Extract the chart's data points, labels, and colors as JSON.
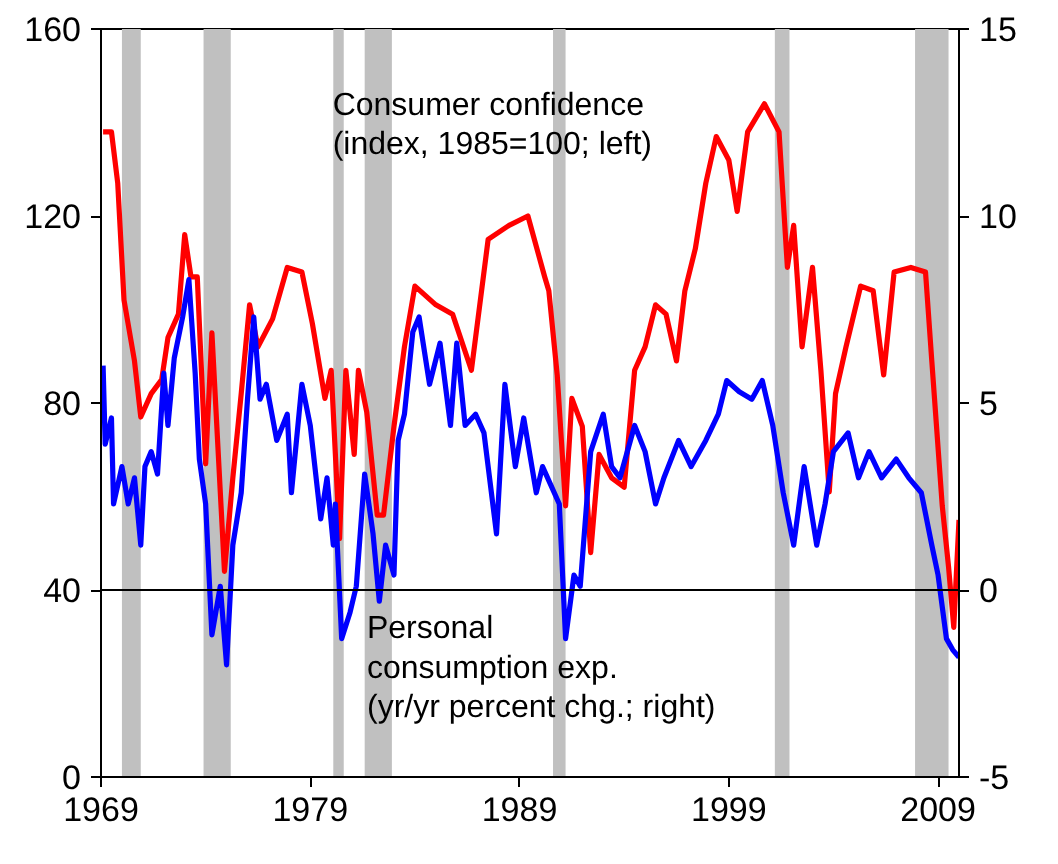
{
  "chart_data": {
    "type": "line",
    "xlim": [
      1969,
      2010
    ],
    "xticks": [
      1969,
      1979,
      1989,
      1999,
      2009
    ],
    "ylim": [
      0,
      160
    ],
    "yticks": [
      0,
      40,
      80,
      120,
      160
    ],
    "y2lim": [
      -5,
      15
    ],
    "y2ticks": [
      -5,
      0,
      5,
      10,
      15
    ],
    "grid": false,
    "legend": false,
    "marker": "none",
    "line_style": "solid",
    "series": [
      {
        "name": "Consumer confidence\n(index, 1985=100; left)",
        "color": "#ff0000",
        "x": [
          1969.1,
          1969.5,
          1969.8,
          1970.1,
          1970.6,
          1970.9,
          1971.4,
          1971.9,
          1972.2,
          1972.7,
          1973.0,
          1973.3,
          1973.6,
          1974.0,
          1974.3,
          1974.9,
          1975.3,
          1975.7,
          1976.1,
          1976.5,
          1977.2,
          1977.9,
          1978.6,
          1979.1,
          1979.7,
          1980.0,
          1980.4,
          1980.7,
          1981.1,
          1981.3,
          1981.7,
          1982.2,
          1982.5,
          1983.0,
          1983.5,
          1984.0,
          1985.0,
          1985.8,
          1986.7,
          1987.5,
          1988.5,
          1989.4,
          1990.2,
          1990.4,
          1990.8,
          1991.2,
          1991.5,
          1992.0,
          1992.4,
          1992.8,
          1993.4,
          1994.0,
          1994.5,
          1995.0,
          1995.5,
          1996.0,
          1996.5,
          1996.9,
          1997.4,
          1997.9,
          1998.4,
          1999.0,
          1999.4,
          1999.9,
          2000.7,
          2001.4,
          2001.8,
          2002.1,
          2002.5,
          2003.0,
          2003.4,
          2003.8,
          2004.1,
          2004.6,
          2005.3,
          2005.9,
          2006.4,
          2006.9,
          2007.7,
          2008.4,
          2008.7,
          2009.2,
          2009.5,
          2009.75,
          2010.0
        ],
        "values": [
          138,
          138,
          127,
          102,
          89,
          77,
          82,
          85,
          94,
          99,
          116,
          107,
          107,
          67,
          95,
          44,
          64,
          82,
          101,
          92,
          98,
          109,
          108,
          97,
          81,
          87,
          51,
          87,
          69,
          87,
          78,
          56,
          56,
          75,
          92,
          105,
          101,
          99,
          87,
          115,
          118,
          120,
          107,
          104,
          86,
          58,
          81,
          75,
          48,
          69,
          64,
          62,
          87,
          92,
          101,
          99,
          89,
          104,
          113,
          127,
          137,
          132,
          121,
          138,
          144,
          138,
          109,
          118,
          92,
          109,
          87,
          61,
          82,
          92,
          105,
          104,
          86,
          108,
          109,
          108,
          89,
          58,
          45,
          32,
          55
        ]
      },
      {
        "name": "Personal\nconsumption exp.\n(yr/yr percent chg.; right)",
        "color": "#0000ff",
        "axis": "y2",
        "x": [
          1969.1,
          1969.2,
          1969.5,
          1969.6,
          1970.0,
          1970.3,
          1970.6,
          1970.9,
          1971.1,
          1971.4,
          1971.7,
          1972.0,
          1972.2,
          1972.5,
          1972.9,
          1973.2,
          1973.5,
          1973.7,
          1974.0,
          1974.3,
          1974.7,
          1975.0,
          1975.3,
          1975.7,
          1976.0,
          1976.3,
          1976.6,
          1976.9,
          1977.4,
          1977.9,
          1978.1,
          1978.6,
          1979.0,
          1979.5,
          1979.8,
          1980.1,
          1980.2,
          1980.5,
          1980.9,
          1981.2,
          1981.6,
          1982.0,
          1982.3,
          1982.6,
          1983.0,
          1983.2,
          1983.5,
          1983.9,
          1984.2,
          1984.7,
          1985.2,
          1985.7,
          1986.0,
          1986.4,
          1986.9,
          1987.3,
          1987.9,
          1988.3,
          1988.8,
          1989.2,
          1989.8,
          1990.1,
          1990.9,
          1991.2,
          1991.6,
          1991.9,
          1992.4,
          1993.0,
          1993.4,
          1993.8,
          1994.5,
          1995.0,
          1995.5,
          1995.9,
          1996.6,
          1997.2,
          1997.9,
          1998.5,
          1998.9,
          1999.5,
          2000.1,
          2000.6,
          2001.1,
          2001.6,
          2002.1,
          2002.6,
          2003.2,
          2003.6,
          2004.0,
          2004.7,
          2005.2,
          2005.7,
          2006.3,
          2007.0,
          2007.6,
          2008.2,
          2008.7,
          2009.0,
          2009.4,
          2009.7,
          2010.0
        ],
        "values": [
          6.0,
          3.9,
          4.6,
          2.3,
          3.3,
          2.3,
          3.0,
          1.2,
          3.3,
          3.7,
          3.1,
          5.8,
          4.4,
          6.2,
          7.3,
          8.3,
          5.8,
          3.5,
          2.3,
          -1.2,
          0.1,
          -2.0,
          1.2,
          2.6,
          5.1,
          7.3,
          5.1,
          5.5,
          4.0,
          4.7,
          2.6,
          5.5,
          4.4,
          1.9,
          3.0,
          1.2,
          2.3,
          -1.3,
          -0.6,
          0.1,
          3.1,
          1.5,
          -0.3,
          1.2,
          0.4,
          4.0,
          4.7,
          6.9,
          7.3,
          5.5,
          6.6,
          4.4,
          6.6,
          4.4,
          4.7,
          4.2,
          1.5,
          5.5,
          3.3,
          4.6,
          2.6,
          3.3,
          2.3,
          -1.3,
          0.4,
          0.1,
          3.7,
          4.7,
          3.3,
          3.0,
          4.4,
          3.7,
          2.3,
          3.0,
          4.0,
          3.3,
          4.0,
          4.7,
          5.6,
          5.3,
          5.1,
          5.6,
          4.4,
          2.6,
          1.2,
          3.3,
          1.2,
          2.3,
          3.7,
          4.2,
          3.0,
          3.7,
          3.0,
          3.5,
          3.0,
          2.6,
          1.2,
          0.4,
          -1.3,
          -1.6,
          -1.8
        ]
      }
    ],
    "ref_lines": [
      {
        "axis": "y2",
        "value": 0,
        "color": "#000000"
      }
    ],
    "bands": [
      {
        "axis": "x",
        "from": 1970.0,
        "to": 1970.9,
        "color": "#c0c0c0"
      },
      {
        "axis": "x",
        "from": 1973.9,
        "to": 1975.2,
        "color": "#c0c0c0"
      },
      {
        "axis": "x",
        "from": 1980.1,
        "to": 1980.6,
        "color": "#c0c0c0"
      },
      {
        "axis": "x",
        "from": 1981.6,
        "to": 1982.9,
        "color": "#c0c0c0"
      },
      {
        "axis": "x",
        "from": 1990.6,
        "to": 1991.2,
        "color": "#c0c0c0"
      },
      {
        "axis": "x",
        "from": 2001.2,
        "to": 2001.9,
        "color": "#c0c0c0"
      },
      {
        "axis": "x",
        "from": 2007.9,
        "to": 2009.5,
        "color": "#c0c0c0"
      }
    ]
  }
}
